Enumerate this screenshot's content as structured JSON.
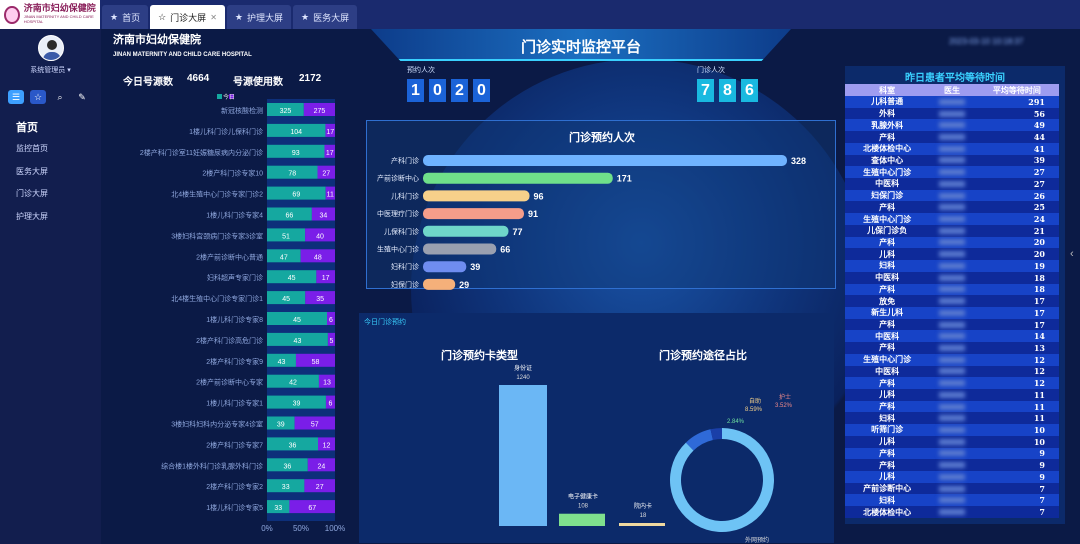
{
  "logo": {
    "title": "济南市妇幼保健院",
    "sub": "JINAN MATERNITY AND CHILD CARE HOSPITAL"
  },
  "tabs": [
    {
      "label": "首页",
      "icon": "star-icon"
    },
    {
      "label": "门诊大屏",
      "icon": "star-icon",
      "active": true
    },
    {
      "label": "护理大屏",
      "icon": "star-icon"
    },
    {
      "label": "医务大屏",
      "icon": "star-icon"
    }
  ],
  "sidebar": {
    "user": "系统管理员",
    "menu_header": "首页",
    "items": [
      "监控首页",
      "医务大屏",
      "门诊大屏",
      "护理大屏"
    ]
  },
  "header": {
    "hospital": "济南市妇幼保健院",
    "hospital_en": "JINAN MATERNITY AND CHILD CARE HOSPITAL",
    "title": "门诊实时监控平台"
  },
  "stats": {
    "today_label": "今日号源数",
    "today_value": "4664",
    "used_label": "号源使用数",
    "used_value": "2172",
    "legend_label": "今日"
  },
  "counters": {
    "booked_label": "预约人次",
    "booked_digits": [
      "1",
      "0",
      "2",
      "0"
    ],
    "visits_label": "门诊人次",
    "visits_digits": [
      "7",
      "8",
      "6"
    ]
  },
  "left_chart": {
    "type": "bar",
    "stacked": "percent",
    "xticks": [
      "0%",
      "50%",
      "100%"
    ],
    "rows": [
      {
        "label": "新冠核酸检测",
        "a": 325,
        "b": 275
      },
      {
        "label": "1楼儿科门诊儿保科门诊",
        "a": 104,
        "b": 17
      },
      {
        "label": "2楼产科门诊室11妊娠糖尿病内分泌门诊",
        "a": 93,
        "b": 17
      },
      {
        "label": "2楼产科门诊专家10",
        "a": 78,
        "b": 27
      },
      {
        "label": "北4楼生殖中心门诊专家门诊2",
        "a": 69,
        "b": 11
      },
      {
        "label": "1楼儿科门诊专家4",
        "a": 66,
        "b": 34
      },
      {
        "label": "3楼妇科宫颈病门诊专家3诊室",
        "a": 51,
        "b": 40
      },
      {
        "label": "2楼产前诊断中心普通",
        "a": 47,
        "b": 48
      },
      {
        "label": "妇科超声专家门诊",
        "a": 45,
        "b": 17
      },
      {
        "label": "北4楼生殖中心门诊专家门诊1",
        "a": 45,
        "b": 35
      },
      {
        "label": "1楼儿科门诊专家8",
        "a": 45,
        "b": 6
      },
      {
        "label": "2楼产科门诊高危门诊",
        "a": 43,
        "b": 5
      },
      {
        "label": "2楼产科门诊专家9",
        "a": 43,
        "b": 58
      },
      {
        "label": "2楼产前诊断中心专家",
        "a": 42,
        "b": 13
      },
      {
        "label": "1楼儿科门诊专家1",
        "a": 39,
        "b": 6
      },
      {
        "label": "3楼妇科妇科内分泌专家4诊室",
        "a": 39,
        "b": 57
      },
      {
        "label": "2楼产科门诊专家7",
        "a": 36,
        "b": 12
      },
      {
        "label": "综合楼1楼外科门诊乳腺外科门诊",
        "a": 36,
        "b": 24
      },
      {
        "label": "2楼产科门诊专家2",
        "a": 33,
        "b": 27
      },
      {
        "label": "1楼儿科门诊专家5",
        "a": 33,
        "b": 67
      }
    ]
  },
  "chart_data": [
    {
      "type": "bar",
      "title": "门诊预约人次",
      "categories": [
        "产科门诊",
        "产前诊断中心",
        "儿科门诊",
        "中医理疗门诊",
        "儿保科门诊",
        "生殖中心门诊",
        "妇科门诊",
        "妇保门诊"
      ],
      "values": [
        328,
        171,
        96,
        91,
        77,
        66,
        39,
        29
      ]
    },
    {
      "type": "bar",
      "title": "门诊预约卡类型",
      "categories": [
        "身份证",
        "电子健康卡",
        "院内卡"
      ],
      "values": [
        1240,
        108,
        18
      ]
    },
    {
      "type": "pie",
      "title": "门诊预约途径占比",
      "categories": [
        "外网预约",
        "自助",
        "护士"
      ],
      "values": [
        87.05,
        8.59,
        3.52
      ],
      "extra_label": "2.84%"
    }
  ],
  "table": {
    "title": "昨日患者平均等待时间",
    "headers": [
      "科室",
      "医生",
      "平均等待时间"
    ],
    "rows": [
      [
        "儿科普通",
        "291"
      ],
      [
        "外科",
        "56"
      ],
      [
        "乳腺外科",
        "49"
      ],
      [
        "产科",
        "44"
      ],
      [
        "北楼体检中心",
        "41"
      ],
      [
        "查体中心",
        "39"
      ],
      [
        "生殖中心门诊",
        "27"
      ],
      [
        "中医科",
        "27"
      ],
      [
        "妇保门诊",
        "26"
      ],
      [
        "产科",
        "25"
      ],
      [
        "生殖中心门诊",
        "24"
      ],
      [
        "儿保门诊负",
        "21"
      ],
      [
        "产科",
        "20"
      ],
      [
        "儿科",
        "20"
      ],
      [
        "妇科",
        "19"
      ],
      [
        "中医科",
        "18"
      ],
      [
        "产科",
        "18"
      ],
      [
        "放免",
        "17"
      ],
      [
        "新生儿科",
        "17"
      ],
      [
        "产科",
        "17"
      ],
      [
        "中医科",
        "14"
      ],
      [
        "产科",
        "13"
      ],
      [
        "生殖中心门诊",
        "12"
      ],
      [
        "中医科",
        "12"
      ],
      [
        "产科",
        "12"
      ],
      [
        "儿科",
        "11"
      ],
      [
        "产科",
        "11"
      ],
      [
        "妇科",
        "11"
      ],
      [
        "听筛门诊",
        "10"
      ],
      [
        "儿科",
        "10"
      ],
      [
        "产科",
        "9"
      ],
      [
        "产科",
        "9"
      ],
      [
        "儿科",
        "9"
      ],
      [
        "产前诊断中心",
        "7"
      ],
      [
        "妇科",
        "7"
      ],
      [
        "北楼体检中心",
        "7"
      ]
    ]
  },
  "colors": {
    "teal": "#15a8a0",
    "purple": "#7a1ee8"
  }
}
